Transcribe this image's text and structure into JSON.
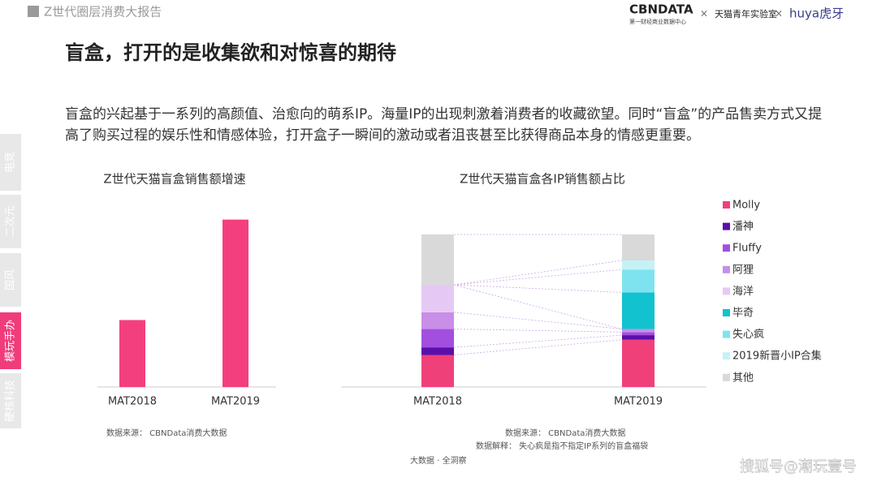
{
  "header": {
    "report": "Z世代圈层消费大报告",
    "logos": [
      "CBNDATA",
      "第一财经商业数据中心",
      "天猫青年实验室",
      "huya虎牙"
    ]
  },
  "tabs": [
    "电竞",
    "二次元",
    "国风",
    "模玩手办",
    "硬核科技"
  ],
  "active_tab": 3,
  "title": "盲盒，打开的是收集欲和对惊喜的期待",
  "body": "盲盒的兴起基于一系列的高颜值、治愈向的萌系IP。海量IP的出现刺激着消费者的收藏欲望。同时“盲盒”的产品售卖方式又提高了购买过程的娱乐性和情感体验，打开盒子一瞬间的激动或者沮丧甚至比获得商品本身的情感更重要。",
  "chart_data": [
    {
      "type": "bar",
      "title": "Z世代天猫盲盒销售额增速",
      "categories": [
        "MAT2018",
        "MAT2019"
      ],
      "values": [
        40,
        100
      ],
      "color": "#f43f7f",
      "ylim": [
        0,
        110
      ],
      "source": "数据来源： CBNData消费大数据"
    },
    {
      "type": "stacked_bar",
      "title": "Z世代天猫盲盒各IP销售额占比",
      "categories": [
        "MAT2018",
        "MAT2019"
      ],
      "ylim": [
        0,
        100
      ],
      "series": [
        {
          "name": "Molly",
          "color": "#f0407a",
          "values": [
            21,
            31
          ]
        },
        {
          "name": "潘神",
          "color": "#5a0fa8",
          "values": [
            5,
            3
          ]
        },
        {
          "name": "Fluffy",
          "color": "#a24fe0",
          "values": [
            12,
            2
          ]
        },
        {
          "name": "阿狸",
          "color": "#c98ee8",
          "values": [
            11,
            2
          ]
        },
        {
          "name": "海洋",
          "color": "#e6c8f5",
          "values": [
            18,
            0
          ]
        },
        {
          "name": "毕奇",
          "color": "#12c2cf",
          "values": [
            0,
            24
          ]
        },
        {
          "name": "失心疯",
          "color": "#7ee3ef",
          "values": [
            0,
            15
          ]
        },
        {
          "name": "2019新晋小IP合集",
          "color": "#c4f2f7",
          "values": [
            0,
            6
          ]
        },
        {
          "name": "其他",
          "color": "#d9d9d9",
          "values": [
            33,
            17
          ]
        }
      ],
      "source": "数据来源： CBNData消费大数据",
      "note": "数据解释： 失心疯是指不指定IP系列的盲盒福袋"
    }
  ],
  "footer": "大数据 · 全洞察",
  "watermark": "搜狐号@潮玩壹号"
}
